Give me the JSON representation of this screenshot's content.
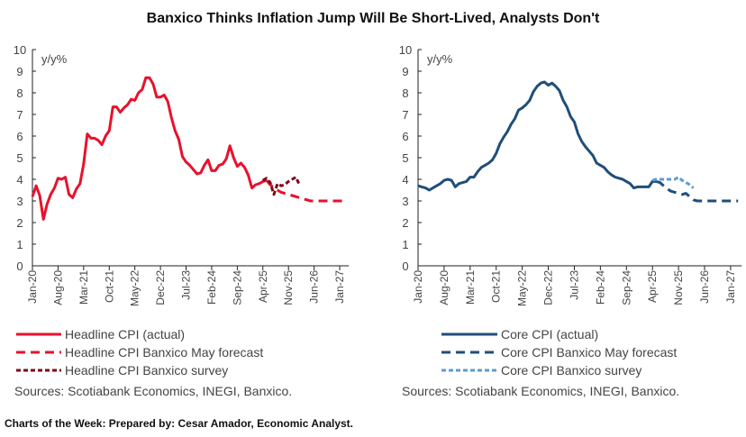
{
  "title": "Banxico Thinks Inflation Jump Will Be Short-Lived, Analysts Don't",
  "footer": "Charts of the Week: Prepared by: Cesar Amador, Economic Analyst.",
  "chart_data": [
    {
      "type": "line",
      "ylabel": "y/y%",
      "ylim": [
        0,
        10
      ],
      "yticks": [
        "0",
        "1",
        "2",
        "3",
        "4",
        "5",
        "6",
        "7",
        "8",
        "9",
        "10"
      ],
      "x_start": "Jan-20",
      "x_unit": "month",
      "x_max_months": 86.5,
      "xtick_labels": [
        "Jan-20",
        "Aug-20",
        "Mar-21",
        "Oct-21",
        "May-22",
        "Dec-22",
        "Jul-23",
        "Feb-24",
        "Sep-24",
        "Apr-25",
        "Nov-25",
        "Jun-26",
        "Jan-27"
      ],
      "sources": "Sources: Scotiabank Economics, INEGI, Banxico.",
      "series": [
        {
          "name": "Headline CPI (actual)",
          "style": "solid",
          "color": "#e8112d",
          "start_month": 0,
          "values": [
            3.2,
            3.7,
            3.25,
            2.15,
            2.85,
            3.3,
            3.6,
            4.05,
            4.0,
            4.1,
            3.3,
            3.15,
            3.55,
            3.8,
            4.7,
            6.1,
            5.9,
            5.9,
            5.8,
            5.6,
            6.0,
            6.25,
            7.35,
            7.35,
            7.1,
            7.3,
            7.45,
            7.7,
            7.65,
            8.0,
            8.15,
            8.7,
            8.7,
            8.4,
            7.8,
            7.8,
            7.9,
            7.6,
            6.85,
            6.25,
            5.85,
            5.05,
            4.8,
            4.65,
            4.45,
            4.25,
            4.3,
            4.65,
            4.9,
            4.4,
            4.4,
            4.65,
            4.7,
            4.95,
            5.55,
            5.0,
            4.6,
            4.75,
            4.55,
            4.2,
            3.6,
            3.75,
            3.8,
            3.9,
            3.95
          ]
        },
        {
          "name": "Headline CPI Banxico May forecast",
          "style": "dashed",
          "color": "#e8112d",
          "start_month": 64,
          "values": [
            3.95,
            3.75,
            3.6,
            3.5,
            3.4,
            3.35,
            3.3,
            3.25,
            3.2,
            3.15,
            3.1,
            3.05,
            3.0,
            3.0,
            3.0,
            3.0,
            3.0,
            3.0,
            3.0,
            3.0,
            3.0,
            3.0,
            3.0
          ]
        },
        {
          "name": "Headline CPI Banxico survey",
          "style": "dotted",
          "color": "#7b0a1a",
          "start_month": 63,
          "values": [
            3.95,
            4.05,
            3.85,
            3.3,
            3.8,
            3.7,
            3.75,
            3.9,
            4.0,
            4.1,
            3.75
          ]
        }
      ]
    },
    {
      "type": "line",
      "ylabel": "y/y%",
      "ylim": [
        0,
        10
      ],
      "yticks": [
        "0",
        "1",
        "2",
        "3",
        "4",
        "5",
        "6",
        "7",
        "8",
        "9",
        "10"
      ],
      "x_start": "Jan-20",
      "x_unit": "month",
      "x_max_months": 87,
      "xtick_labels": [
        "Jan-20",
        "Aug-20",
        "Mar-21",
        "Oct-21",
        "May-22",
        "Dec-22",
        "Jul-23",
        "Feb-24",
        "Sep-24",
        "Apr-25",
        "Nov-25",
        "Jun-26",
        "Jan-27"
      ],
      "sources": "Sources: Scotiabank Economics, INEGI, Banxico.",
      "series": [
        {
          "name": "Core CPI (actual)",
          "style": "solid",
          "color": "#1f4e79",
          "start_month": 0,
          "values": [
            3.7,
            3.65,
            3.6,
            3.5,
            3.6,
            3.7,
            3.8,
            3.95,
            4.0,
            3.95,
            3.65,
            3.8,
            3.85,
            3.9,
            4.1,
            4.1,
            4.35,
            4.55,
            4.65,
            4.75,
            4.9,
            5.2,
            5.65,
            5.95,
            6.2,
            6.55,
            6.8,
            7.2,
            7.3,
            7.45,
            7.65,
            8.05,
            8.3,
            8.45,
            8.5,
            8.35,
            8.45,
            8.3,
            8.1,
            7.65,
            7.35,
            6.9,
            6.65,
            6.1,
            5.75,
            5.5,
            5.3,
            5.1,
            4.75,
            4.65,
            4.55,
            4.35,
            4.2,
            4.1,
            4.05,
            4.0,
            3.9,
            3.8,
            3.6,
            3.65,
            3.65,
            3.65,
            3.65,
            3.9,
            3.9
          ]
        },
        {
          "name": "Core CPI Banxico May forecast",
          "style": "dashed",
          "color": "#1f4e79",
          "start_month": 64,
          "values": [
            3.9,
            3.85,
            3.7,
            3.55,
            3.45,
            3.4,
            3.35,
            3.3,
            3.35,
            3.2,
            3.05,
            3.0,
            3.0,
            3.0,
            3.0,
            3.0,
            3.0,
            3.0,
            3.0,
            3.0,
            3.0,
            3.0,
            3.0
          ]
        },
        {
          "name": "Core CPI Banxico survey",
          "style": "dotted",
          "color": "#5b9bd5",
          "start_month": 63,
          "values": [
            3.95,
            4.0,
            4.0,
            4.0,
            4.0,
            4.0,
            4.0,
            4.1,
            3.95,
            3.85,
            3.75,
            3.6
          ]
        }
      ]
    }
  ]
}
